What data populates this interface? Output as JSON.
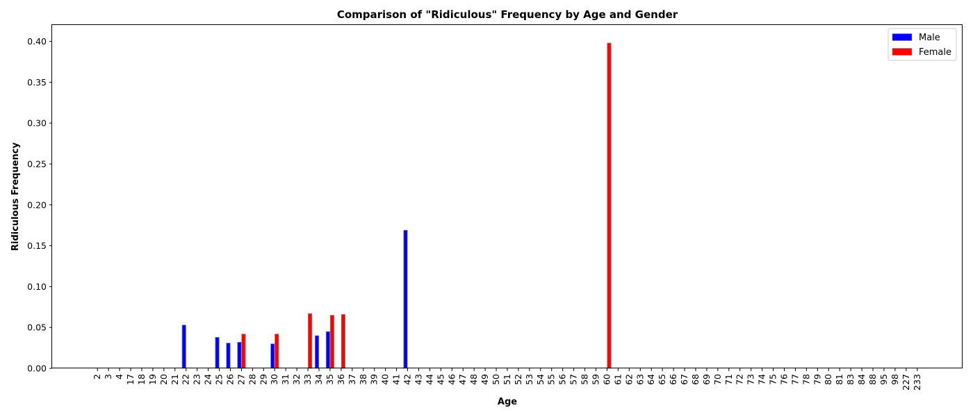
{
  "chart_data": {
    "type": "bar",
    "title": "Comparison of \"Ridiculous\" Frequency by Age and Gender",
    "xlabel": "Age",
    "ylabel": "Ridiculous Frequency",
    "ylim": [
      0,
      0.42
    ],
    "yticks": [
      "0.00",
      "0.05",
      "0.10",
      "0.15",
      "0.20",
      "0.25",
      "0.30",
      "0.35",
      "0.40"
    ],
    "categories": [
      "2",
      "3",
      "4",
      "17",
      "18",
      "19",
      "20",
      "21",
      "22",
      "23",
      "24",
      "25",
      "26",
      "27",
      "28",
      "29",
      "30",
      "31",
      "32",
      "33",
      "34",
      "35",
      "36",
      "37",
      "38",
      "39",
      "40",
      "41",
      "42",
      "43",
      "44",
      "45",
      "46",
      "47",
      "48",
      "49",
      "50",
      "51",
      "52",
      "53",
      "54",
      "55",
      "56",
      "57",
      "58",
      "59",
      "60",
      "61",
      "62",
      "63",
      "64",
      "65",
      "66",
      "67",
      "68",
      "69",
      "70",
      "71",
      "72",
      "73",
      "74",
      "75",
      "76",
      "77",
      "78",
      "79",
      "80",
      "81",
      "83",
      "84",
      "88",
      "95",
      "98",
      "227",
      "233"
    ],
    "series": [
      {
        "name": "Male",
        "color": "#0000ff",
        "values": [
          0,
          0,
          0,
          0,
          0,
          0,
          0,
          0,
          0.053,
          0,
          0,
          0.038,
          0.031,
          0.032,
          0,
          0,
          0.03,
          0,
          0,
          0,
          0.04,
          0.045,
          0,
          0,
          0,
          0,
          0,
          0,
          0.169,
          0,
          0,
          0,
          0,
          0,
          0,
          0,
          0,
          0,
          0,
          0,
          0,
          0,
          0,
          0,
          0,
          0,
          0,
          0,
          0,
          0,
          0,
          0,
          0,
          0,
          0,
          0,
          0,
          0,
          0,
          0,
          0,
          0,
          0,
          0,
          0,
          0,
          0,
          0,
          0,
          0,
          0,
          0,
          0,
          0,
          0
        ]
      },
      {
        "name": "Female",
        "color": "#ff0000",
        "values": [
          0,
          0,
          0,
          0,
          0,
          0,
          0,
          0,
          0,
          0,
          0,
          0,
          0,
          0.042,
          0,
          0,
          0.042,
          0,
          0,
          0.067,
          0,
          0.065,
          0.066,
          0,
          0,
          0,
          0,
          0,
          0,
          0,
          0,
          0,
          0,
          0,
          0,
          0,
          0,
          0,
          0,
          0,
          0,
          0,
          0,
          0,
          0,
          0,
          0.398,
          0,
          0,
          0,
          0,
          0,
          0,
          0,
          0,
          0,
          0,
          0,
          0,
          0,
          0,
          0,
          0,
          0,
          0,
          0,
          0,
          0,
          0,
          0,
          0,
          0,
          0,
          0,
          0
        ]
      }
    ],
    "grid": false,
    "legend_position": "top-right"
  }
}
